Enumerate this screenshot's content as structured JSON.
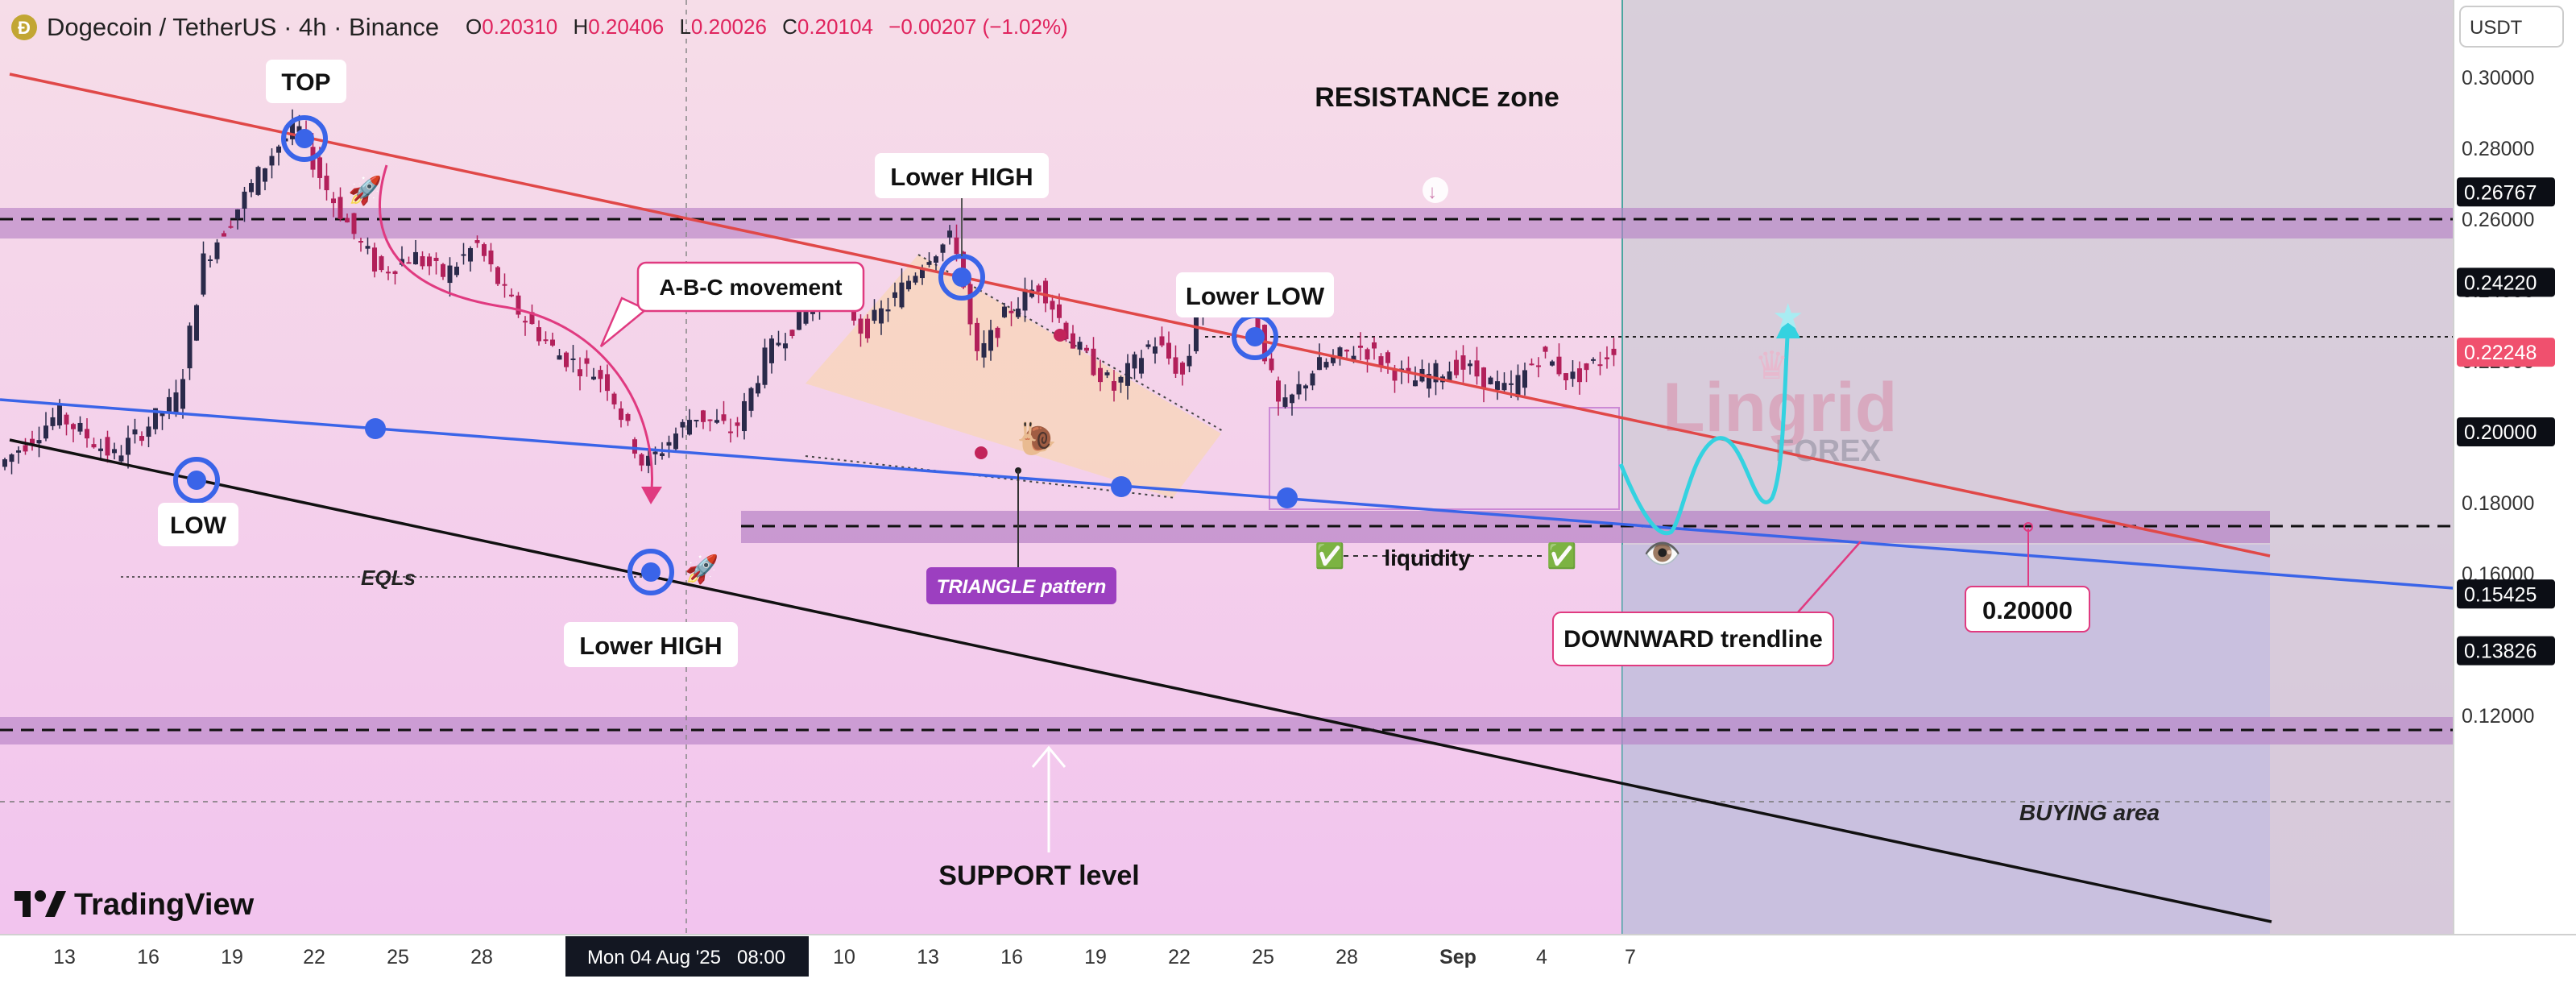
{
  "header": {
    "pair": "Dogecoin / TetherUS · 4h · Binance",
    "o_label": "O",
    "o_value": "0.20310",
    "h_label": "H",
    "h_value": "0.20406",
    "l_label": "L",
    "l_value": "0.20026",
    "c_label": "C",
    "c_value": "0.20104",
    "change": "−0.00207 (−1.02%)",
    "down_color": "#e0245e"
  },
  "currency": "USDT",
  "brand": "TradingView",
  "watermark": {
    "line1": "Lingrid",
    "line2": "FOREX"
  },
  "cursor_time": "Mon 04 Aug '25   08:00",
  "chart_data": {
    "type": "candlestick",
    "symbol": "DOGE/USDT",
    "interval": "4h",
    "x_ticks": [
      "13",
      "16",
      "19",
      "22",
      "25",
      "28",
      "Mon 04 Aug '25",
      "10",
      "13",
      "16",
      "19",
      "22",
      "25",
      "28",
      "Sep",
      "4",
      "7"
    ],
    "ylim": [
      0.11,
      0.31
    ],
    "y_ticks": [
      "0.30000",
      "0.28000",
      "0.26000",
      "0.24000",
      "0.22000",
      "0.20000",
      "0.18000",
      "0.16000",
      "0.14000",
      "0.12000"
    ],
    "price_tags": [
      {
        "value": "0.26767",
        "style": "dark"
      },
      {
        "value": "0.24220",
        "style": "dark"
      },
      {
        "value": "0.22248",
        "style": "red"
      },
      {
        "value": "0.20000",
        "style": "dark"
      },
      {
        "value": "0.15425",
        "style": "dark"
      },
      {
        "value": "0.13826",
        "style": "dark"
      }
    ],
    "last_price": 0.20104,
    "annotations": {
      "top": "TOP",
      "low": "LOW",
      "eqls": "EQLs",
      "lower_high_1": "Lower HIGH",
      "lower_high_2": "Lower HIGH",
      "lower_low": "Lower LOW",
      "abc": "A-B-C movement",
      "resistance": "RESISTANCE zone",
      "triangle": "TRIANGLE pattern",
      "liquidity": "liquidity",
      "downward": "DOWNWARD trendline",
      "level": "0.20000",
      "support": "SUPPORT level",
      "buying": "BUYING area"
    },
    "colors": {
      "up": "#2a2a4a",
      "down": "#b2205a",
      "resistance_line": "#e04848",
      "trend_line": "#3a64e8",
      "zone": "#c68ed6",
      "projection": "#34d2e0"
    }
  }
}
